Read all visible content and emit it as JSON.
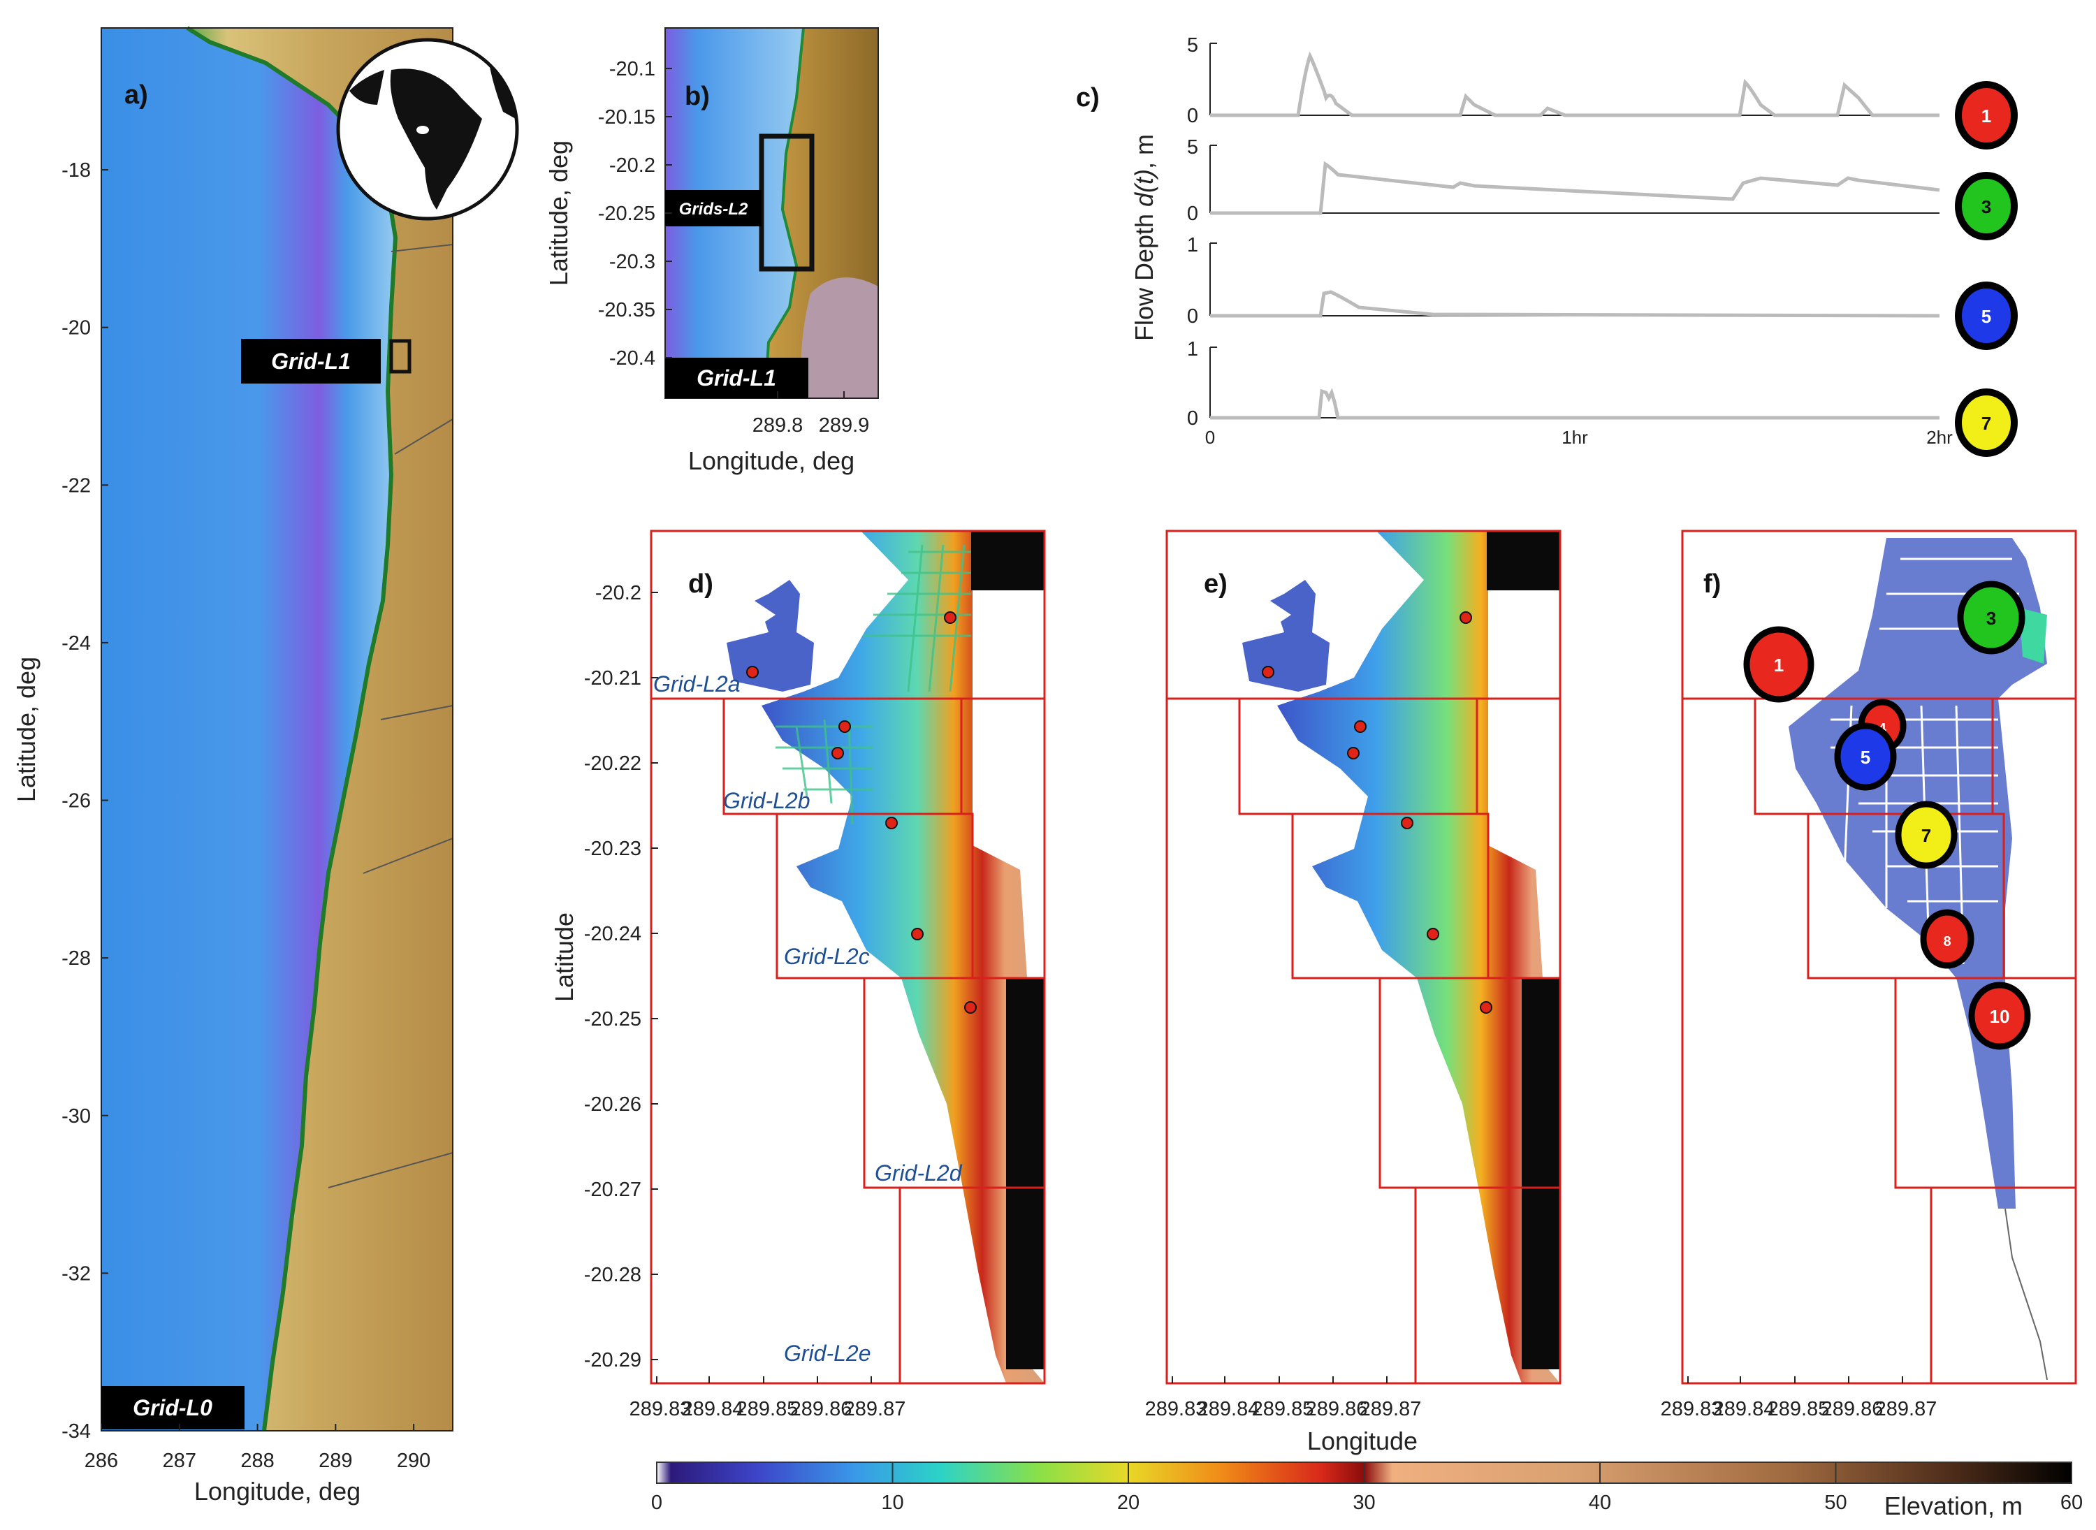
{
  "panel_a": {
    "label": "a)",
    "xlabel": "Longitude, deg",
    "ylabel": "Latitude, deg",
    "xticks": [
      "286",
      "287",
      "288",
      "289",
      "290"
    ],
    "yticks": [
      "-18",
      "-20",
      "-22",
      "-24",
      "-26",
      "-28",
      "-30",
      "-32",
      "-34"
    ],
    "grid_l1_tag": "Grid-L1",
    "grid_l0_tag": "Grid-L0"
  },
  "panel_b": {
    "label": "b)",
    "xlabel": "Longitude, deg",
    "ylabel": "Latitude, deg",
    "xticks": [
      "289.8",
      "289.9"
    ],
    "yticks": [
      "-20.1",
      "-20.15",
      "-20.2",
      "-20.25",
      "-20.3",
      "-20.35",
      "-20.4"
    ],
    "grids_l2_tag": "Grids-L2",
    "grid_l1_tag": "Grid-L1"
  },
  "panel_c": {
    "label": "c)",
    "ylabel_prefix": "Flow Depth ",
    "ylabel_var": "d(t)",
    "ylabel_suffix": ", m",
    "xticks": [
      "0",
      "1hr",
      "2hr"
    ],
    "rows": [
      {
        "ymax_label": "5",
        "ymin_label": "0",
        "gauge": "1"
      },
      {
        "ymax_label": "5",
        "ymin_label": "0",
        "gauge": "3"
      },
      {
        "ymax_label": "1",
        "ymin_label": "0",
        "gauge": "5"
      },
      {
        "ymax_label": "1",
        "ymin_label": "0",
        "gauge": "7"
      }
    ]
  },
  "panel_d": {
    "label": "d)",
    "ylabel": "Latitude",
    "yticks": [
      "-20.2",
      "-20.21",
      "-20.22",
      "-20.23",
      "-20.24",
      "-20.25",
      "-20.26",
      "-20.27",
      "-20.28",
      "-20.29"
    ],
    "xticks": [
      "289.83",
      "289.84",
      "289.85",
      "289.86",
      "289.87"
    ],
    "grid_tags": [
      "Grid-L2a",
      "Grid-L2b",
      "Grid-L2c",
      "Grid-L2d",
      "Grid-L2e"
    ]
  },
  "panel_e": {
    "label": "e)",
    "xlabel": "Longitude",
    "xticks": [
      "289.83",
      "289.84",
      "289.85",
      "289.86",
      "289.87"
    ]
  },
  "panel_f": {
    "label": "f)",
    "xticks": [
      "289.83",
      "289.84",
      "289.85",
      "289.86",
      "289.87"
    ],
    "gauges": [
      {
        "id": "1",
        "color": "#e8281e",
        "text_color": "#ffffff"
      },
      {
        "id": "3",
        "color": "#22c41e",
        "text_color": "#111111"
      },
      {
        "id": "4",
        "color": "#e8281e",
        "text_color": "#ffffff"
      },
      {
        "id": "5",
        "color": "#1e3ae8",
        "text_color": "#ffffff"
      },
      {
        "id": "7",
        "color": "#f2ee18",
        "text_color": "#111111"
      },
      {
        "id": "8",
        "color": "#e8281e",
        "text_color": "#ffffff"
      },
      {
        "id": "10",
        "color": "#e8281e",
        "text_color": "#ffffff"
      }
    ]
  },
  "colorbar": {
    "ticks": [
      "0",
      "10",
      "20",
      "30",
      "40",
      "50",
      "60"
    ],
    "label": "Elevation, m"
  }
}
